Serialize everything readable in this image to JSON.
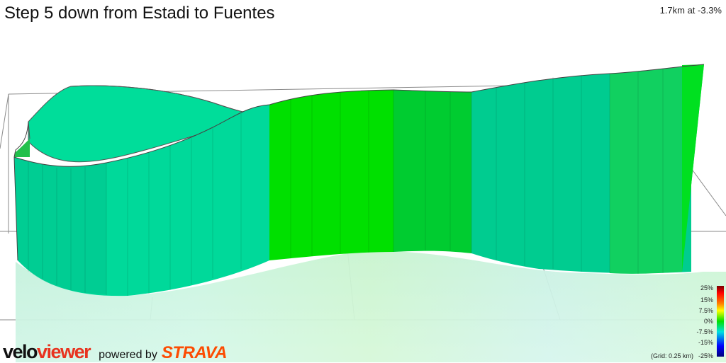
{
  "header": {
    "title": "Step 5 down from Estadi to Fuentes",
    "summary": "1.7km at -3.3%"
  },
  "legend": {
    "labels": [
      "25%",
      "15%",
      "7.5%",
      "0%",
      "-7.5%",
      "-15%",
      "-25%"
    ],
    "grid_note": "(Grid: 0.25 km)"
  },
  "branding": {
    "logo_part1": "velo",
    "logo_part2": "viewer",
    "powered_by": "powered by",
    "partner": "STRAVA"
  },
  "colors": {
    "velo": "#111111",
    "viewer": "#e8331f",
    "strava": "#fc4c02",
    "profile_green": "#00d000",
    "profile_teal": "#00d8a0"
  }
}
